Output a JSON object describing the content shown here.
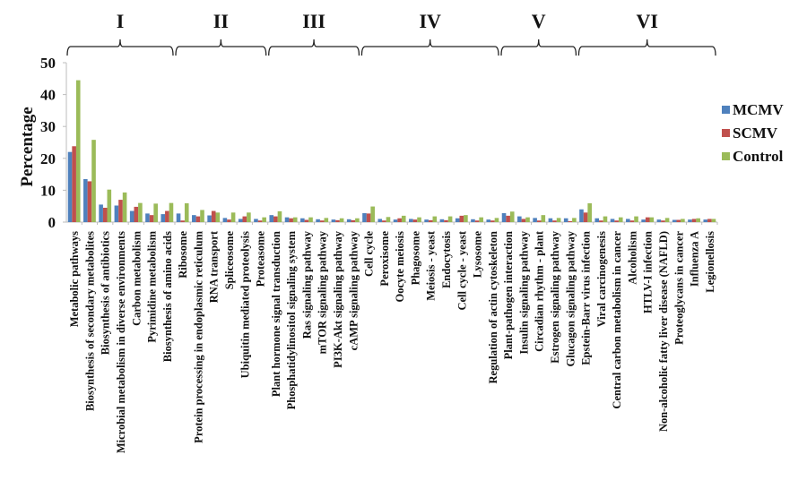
{
  "chart_data": {
    "type": "bar",
    "title": "",
    "xlabel": "",
    "ylabel": "Percentage",
    "ylim": [
      0,
      50
    ],
    "yticks": [
      "0",
      "10",
      "20",
      "30",
      "40",
      "50"
    ],
    "grid": false,
    "legend_position": "right",
    "categories": [
      "Metabolic pathways",
      "Biosynthesis of secondary metabolites",
      "Biosynthesis of antibiotics",
      "Microbial metabolism in diverse environments",
      "Carbon metabolism",
      "Pyrimidine metabolism",
      "Biosynthesis of amino acids",
      "Ribosome",
      "Protein processing in endoplasmic reticulum",
      "RNA transport",
      "Spliceosome",
      "Ubiquitin mediated proteolysis",
      "Proteasome",
      "Plant hormone signal transduction",
      "Phosphatidylinositol signaling system",
      "Ras signaling pathway",
      "mTOR signaling pathway",
      "PI3K-Akt signaling pathway",
      "cAMP signaling pathway",
      "Cell cycle",
      "Peroxisome",
      "Oocyte meiosis",
      "Phagosome",
      "Meiosis - yeast",
      "Endocytosis",
      "Cell cycle - yeast",
      "Lysosome",
      "Regulation of actin cytoskeleton",
      "Plant-pathogen interaction",
      "Insulin signaling pathway",
      "Circadian rhythm - plant",
      "Estrogen signaling pathway",
      "Glucagon signaling pathway",
      "Epstein-Barr virus infection",
      "Viral carcinogenesis",
      "Central carbon metabolism in cancer",
      "Alcoholism",
      "HTLV-I infection",
      "Non-alcoholic fatty liver disease (NAFLD)",
      "Proteoglycans in cancer",
      "Influenza A",
      "Legionellosis"
    ],
    "series": [
      {
        "name": "MCMV",
        "color": "#4F81BD",
        "values": [
          22.0,
          13.5,
          5.5,
          5.2,
          3.5,
          2.7,
          2.5,
          2.7,
          2.2,
          2.1,
          1.3,
          1.0,
          1.0,
          2.2,
          1.5,
          1.2,
          0.9,
          0.8,
          0.9,
          2.8,
          1.0,
          0.8,
          1.0,
          0.8,
          0.9,
          1.2,
          0.9,
          0.8,
          2.8,
          1.8,
          1.3,
          1.2,
          1.2,
          4.0,
          1.2,
          1.0,
          1.0,
          0.8,
          0.8,
          0.7,
          0.8,
          0.8
        ]
      },
      {
        "name": "SCMV",
        "color": "#C0504D",
        "values": [
          23.8,
          12.8,
          4.5,
          7.0,
          4.8,
          2.2,
          3.5,
          0.5,
          1.8,
          3.5,
          0.8,
          1.8,
          0.5,
          1.8,
          1.2,
          0.7,
          0.5,
          0.6,
          0.6,
          2.7,
          0.5,
          1.2,
          0.8,
          0.6,
          0.6,
          2.0,
          0.5,
          0.5,
          2.0,
          1.0,
          0.5,
          0.5,
          0.3,
          3.0,
          0.5,
          0.5,
          0.5,
          1.5,
          0.5,
          0.7,
          1.0,
          1.0
        ]
      },
      {
        "name": "Control",
        "color": "#9BBB59",
        "values": [
          44.5,
          25.8,
          10.2,
          9.3,
          6.0,
          5.8,
          6.0,
          5.9,
          3.8,
          3.0,
          3.0,
          3.0,
          1.5,
          3.4,
          1.5,
          1.5,
          1.3,
          1.2,
          1.2,
          4.9,
          1.6,
          2.0,
          1.5,
          1.8,
          1.8,
          2.2,
          1.5,
          1.3,
          3.3,
          1.5,
          2.2,
          1.3,
          1.3,
          5.9,
          1.8,
          1.5,
          1.8,
          1.5,
          1.3,
          1.0,
          1.2,
          1.0
        ]
      }
    ],
    "groups": [
      {
        "label": "I",
        "start": 0,
        "end": 6
      },
      {
        "label": "II",
        "start": 7,
        "end": 12
      },
      {
        "label": "III",
        "start": 13,
        "end": 18
      },
      {
        "label": "IV",
        "start": 19,
        "end": 27
      },
      {
        "label": "V",
        "start": 28,
        "end": 32
      },
      {
        "label": "VI",
        "start": 33,
        "end": 41
      }
    ]
  }
}
